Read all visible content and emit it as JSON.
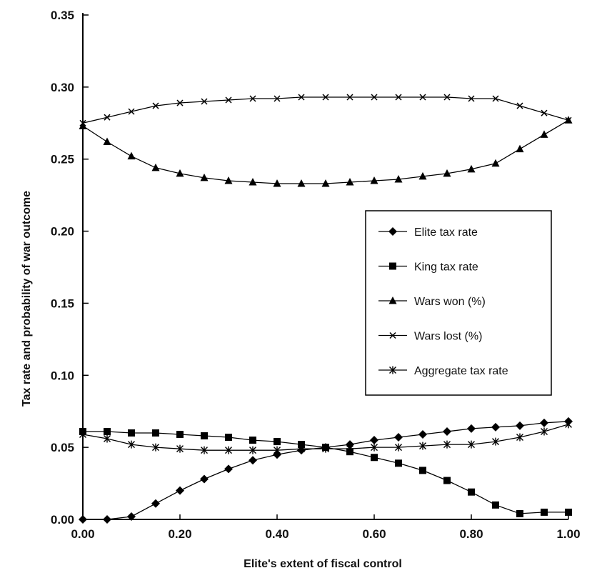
{
  "chart_data": {
    "type": "line",
    "title": "",
    "xlabel": "Elite's extent of fiscal control",
    "ylabel": "Tax rate and probability of war outcome",
    "xlim": [
      0.0,
      1.0
    ],
    "ylim": [
      0.0,
      0.35
    ],
    "x_ticks": [
      0.0,
      0.2,
      0.4,
      0.6,
      0.8,
      1.0
    ],
    "x_tick_labels": [
      "0.00",
      "0.20",
      "0.40",
      "0.60",
      "0.80",
      "1.00"
    ],
    "y_ticks": [
      0.0,
      0.05,
      0.1,
      0.15,
      0.2,
      0.25,
      0.3,
      0.35
    ],
    "y_tick_labels": [
      "0.00",
      "0.05",
      "0.10",
      "0.15",
      "0.20",
      "0.25",
      "0.30",
      "0.35"
    ],
    "grid": false,
    "legend_position": "center-right",
    "series": [
      {
        "name": "Elite tax rate",
        "marker": "diamond",
        "color": "#000000",
        "x": [
          0.0,
          0.05,
          0.1,
          0.15,
          0.2,
          0.25,
          0.3,
          0.35,
          0.4,
          0.45,
          0.5,
          0.55,
          0.6,
          0.65,
          0.7,
          0.75,
          0.8,
          0.85,
          0.9,
          0.95,
          1.0
        ],
        "y": [
          0.0,
          0.0,
          0.002,
          0.011,
          0.02,
          0.028,
          0.035,
          0.041,
          0.045,
          0.048,
          0.05,
          0.052,
          0.055,
          0.057,
          0.059,
          0.061,
          0.063,
          0.064,
          0.065,
          0.067,
          0.068
        ]
      },
      {
        "name": "King tax rate",
        "marker": "square",
        "color": "#000000",
        "x": [
          0.0,
          0.05,
          0.1,
          0.15,
          0.2,
          0.25,
          0.3,
          0.35,
          0.4,
          0.45,
          0.5,
          0.55,
          0.6,
          0.65,
          0.7,
          0.75,
          0.8,
          0.85,
          0.9,
          0.95,
          1.0
        ],
        "y": [
          0.061,
          0.061,
          0.06,
          0.06,
          0.059,
          0.058,
          0.057,
          0.055,
          0.054,
          0.052,
          0.05,
          0.047,
          0.043,
          0.039,
          0.034,
          0.027,
          0.019,
          0.01,
          0.004,
          0.005,
          0.005
        ]
      },
      {
        "name": "Wars won (%)",
        "marker": "triangle",
        "color": "#000000",
        "x": [
          0.0,
          0.05,
          0.1,
          0.15,
          0.2,
          0.25,
          0.3,
          0.35,
          0.4,
          0.45,
          0.5,
          0.55,
          0.6,
          0.65,
          0.7,
          0.75,
          0.8,
          0.85,
          0.9,
          0.95,
          1.0
        ],
        "y": [
          0.273,
          0.262,
          0.252,
          0.244,
          0.24,
          0.237,
          0.235,
          0.234,
          0.233,
          0.233,
          0.233,
          0.234,
          0.235,
          0.236,
          0.238,
          0.24,
          0.243,
          0.247,
          0.257,
          0.267,
          0.277
        ]
      },
      {
        "name": "Wars lost (%)",
        "marker": "x",
        "color": "#000000",
        "x": [
          0.0,
          0.05,
          0.1,
          0.15,
          0.2,
          0.25,
          0.3,
          0.35,
          0.4,
          0.45,
          0.5,
          0.55,
          0.6,
          0.65,
          0.7,
          0.75,
          0.8,
          0.85,
          0.9,
          0.95,
          1.0
        ],
        "y": [
          0.275,
          0.279,
          0.283,
          0.287,
          0.289,
          0.29,
          0.291,
          0.292,
          0.292,
          0.293,
          0.293,
          0.293,
          0.293,
          0.293,
          0.293,
          0.293,
          0.292,
          0.292,
          0.287,
          0.282,
          0.277
        ]
      },
      {
        "name": "Aggregate tax rate",
        "marker": "asterisk",
        "color": "#000000",
        "x": [
          0.0,
          0.05,
          0.1,
          0.15,
          0.2,
          0.25,
          0.3,
          0.35,
          0.4,
          0.45,
          0.5,
          0.55,
          0.6,
          0.65,
          0.7,
          0.75,
          0.8,
          0.85,
          0.9,
          0.95,
          1.0
        ],
        "y": [
          0.059,
          0.056,
          0.052,
          0.05,
          0.049,
          0.048,
          0.048,
          0.048,
          0.048,
          0.049,
          0.049,
          0.049,
          0.05,
          0.05,
          0.051,
          0.052,
          0.052,
          0.054,
          0.057,
          0.061,
          0.066
        ]
      }
    ]
  }
}
